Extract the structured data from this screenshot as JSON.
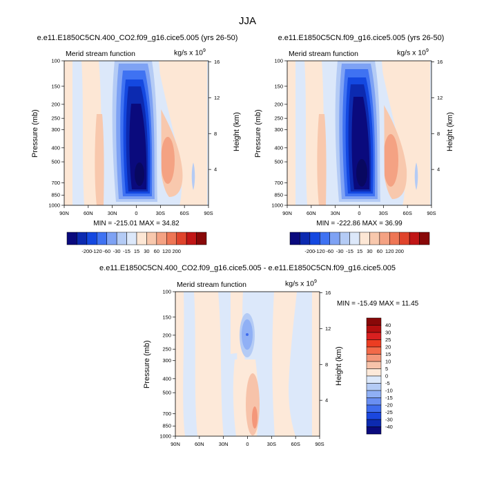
{
  "figure": {
    "title": "JJA"
  },
  "chart_data": [
    {
      "type": "heatmap",
      "title": "e.e11.E1850C5CN.400_CO2.f09_g16.cice5.005 (yrs 26-50)",
      "left_string": "Merid stream function",
      "units": "kg/s x 10",
      "units_exp": "9",
      "xlabel": "",
      "ylabel": "Pressure (mb)",
      "ylabel_right": "Height (km)",
      "x_ticks": [
        "90N",
        "60N",
        "30N",
        "0",
        "30S",
        "60S",
        "90S"
      ],
      "y_ticks": [
        "100",
        "150",
        "200",
        "250",
        "300",
        "400",
        "500",
        "700",
        "850",
        "1000"
      ],
      "y_ticks_right": [
        "16",
        "12",
        "8",
        "4"
      ],
      "min": -215.01,
      "max": 34.82,
      "min_max_text": "MIN = -215.01   MAX = 34.82",
      "colorbar_labels": [
        "-200",
        "-120",
        "-60",
        "-30",
        "-15",
        "15",
        "30",
        "60",
        "120",
        "200"
      ]
    },
    {
      "type": "heatmap",
      "title": "e.e11.E1850C5CN.f09_g16.cice5.005 (yrs 26-50)",
      "left_string": "Merid stream function",
      "units": "kg/s x 10",
      "units_exp": "9",
      "xlabel": "",
      "ylabel": "Pressure (mb)",
      "ylabel_right": "Height (km)",
      "x_ticks": [
        "90N",
        "60N",
        "30N",
        "0",
        "30S",
        "60S",
        "90S"
      ],
      "y_ticks": [
        "100",
        "150",
        "200",
        "250",
        "300",
        "400",
        "500",
        "700",
        "850",
        "1000"
      ],
      "y_ticks_right": [
        "16",
        "12",
        "8",
        "4"
      ],
      "min": -222.86,
      "max": 36.99,
      "min_max_text": "MIN = -222.86   MAX = 36.99",
      "colorbar_labels": [
        "-200",
        "-120",
        "-60",
        "-30",
        "-15",
        "15",
        "30",
        "60",
        "120",
        "200"
      ]
    },
    {
      "type": "heatmap",
      "title": "e.e11.E1850C5CN.400_CO2.f09_g16.cice5.005 - e.e11.E1850C5CN.f09_g16.cice5.005",
      "left_string": "Merid stream function",
      "units": "kg/s x 10",
      "units_exp": "9",
      "xlabel": "",
      "ylabel": "Pressure (mb)",
      "ylabel_right": "Height (km)",
      "x_ticks": [
        "90N",
        "60N",
        "30N",
        "0",
        "30S",
        "60S",
        "90S"
      ],
      "y_ticks": [
        "100",
        "150",
        "200",
        "250",
        "300",
        "400",
        "500",
        "700",
        "850",
        "1000"
      ],
      "y_ticks_right": [
        "16",
        "12",
        "8",
        "4"
      ],
      "min": -15.49,
      "max": 11.45,
      "min_max_text": "MIN = -15.49   MAX = 11.45",
      "colorbar_labels": [
        "40",
        "30",
        "25",
        "20",
        "15",
        "10",
        "5",
        "0",
        "-5",
        "-10",
        "-15",
        "-20",
        "-25",
        "-30",
        "-40"
      ]
    }
  ],
  "colors": {
    "bar_10": [
      "#0a0a7d",
      "#0c2ab0",
      "#1448e0",
      "#3f72f2",
      "#7ea2f4",
      "#b4cbf5",
      "#dce8fa",
      "#fde7d5",
      "#f8c8ad",
      "#f4a283",
      "#ee7655",
      "#e0442c",
      "#c11616",
      "#880808"
    ],
    "bar_diff": [
      "#880808",
      "#b30f0f",
      "#d92020",
      "#ec3d22",
      "#f36a49",
      "#f4977a",
      "#f7c3aa",
      "#fde9d9",
      "#dce8fa",
      "#b4cbf5",
      "#90b0f5",
      "#6a8ff2",
      "#3f6ced",
      "#1b47de",
      "#0c2ab0",
      "#0a0a7d"
    ]
  }
}
